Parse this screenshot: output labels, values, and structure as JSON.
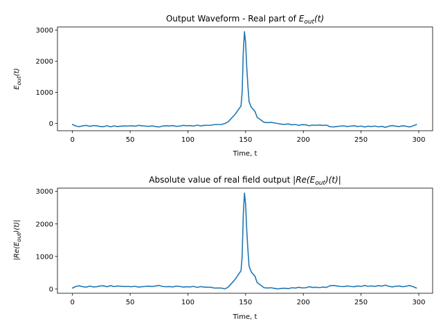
{
  "colors": {
    "line": "#1f77b4",
    "axes": "#000000",
    "background": "#ffffff"
  },
  "chart_data": [
    {
      "type": "line",
      "title": {
        "prefix": "Output Waveform - Real part of ",
        "math_main": "E",
        "math_sub": "out",
        "math_suffix": "(t)"
      },
      "xlabel": "Time, t",
      "ylabel": {
        "main": "E",
        "sub": "out",
        "suffix": "(t)"
      },
      "xlim": [
        -13,
        312
      ],
      "ylim": [
        -230,
        3100
      ],
      "xticks": [
        0,
        50,
        100,
        150,
        200,
        250,
        300
      ],
      "xtick_labels": [
        "0",
        "50",
        "100",
        "150",
        "200",
        "250",
        "300"
      ],
      "yticks": [
        0,
        1000,
        2000,
        3000
      ],
      "ytick_labels": [
        "0",
        "1000",
        "2000",
        "3000"
      ],
      "grid": false,
      "series": [
        {
          "values": [
            [
              0,
              -30
            ],
            [
              3,
              -80
            ],
            [
              6,
              -100
            ],
            [
              9,
              -70
            ],
            [
              12,
              -60
            ],
            [
              15,
              -90
            ],
            [
              18,
              -65
            ],
            [
              21,
              -70
            ],
            [
              24,
              -95
            ],
            [
              27,
              -100
            ],
            [
              30,
              -70
            ],
            [
              33,
              -105
            ],
            [
              36,
              -75
            ],
            [
              39,
              -95
            ],
            [
              42,
              -85
            ],
            [
              45,
              -75
            ],
            [
              48,
              -80
            ],
            [
              51,
              -70
            ],
            [
              54,
              -85
            ],
            [
              57,
              -60
            ],
            [
              60,
              -70
            ],
            [
              63,
              -80
            ],
            [
              66,
              -90
            ],
            [
              69,
              -75
            ],
            [
              72,
              -95
            ],
            [
              75,
              -110
            ],
            [
              78,
              -80
            ],
            [
              81,
              -70
            ],
            [
              84,
              -75
            ],
            [
              87,
              -65
            ],
            [
              90,
              -90
            ],
            [
              93,
              -80
            ],
            [
              96,
              -60
            ],
            [
              99,
              -70
            ],
            [
              102,
              -65
            ],
            [
              105,
              -80
            ],
            [
              108,
              -50
            ],
            [
              111,
              -75
            ],
            [
              114,
              -60
            ],
            [
              117,
              -55
            ],
            [
              120,
              -55
            ],
            [
              123,
              -30
            ],
            [
              126,
              -30
            ],
            [
              129,
              -30
            ],
            [
              132,
              0
            ],
            [
              135,
              60
            ],
            [
              138,
              180
            ],
            [
              141,
              300
            ],
            [
              144,
              460
            ],
            [
              146,
              560
            ],
            [
              147,
              1000
            ],
            [
              148,
              2300
            ],
            [
              149,
              2950
            ],
            [
              150,
              2600
            ],
            [
              151,
              1800
            ],
            [
              152,
              1200
            ],
            [
              153,
              700
            ],
            [
              155,
              520
            ],
            [
              158,
              400
            ],
            [
              160,
              200
            ],
            [
              163,
              120
            ],
            [
              166,
              40
            ],
            [
              169,
              30
            ],
            [
              172,
              40
            ],
            [
              175,
              20
            ],
            [
              178,
              0
            ],
            [
              181,
              -20
            ],
            [
              184,
              -25
            ],
            [
              187,
              -10
            ],
            [
              190,
              -40
            ],
            [
              193,
              -30
            ],
            [
              196,
              -55
            ],
            [
              199,
              -35
            ],
            [
              202,
              -40
            ],
            [
              205,
              -70
            ],
            [
              208,
              -50
            ],
            [
              211,
              -55
            ],
            [
              214,
              -45
            ],
            [
              217,
              -60
            ],
            [
              220,
              -50
            ],
            [
              223,
              -100
            ],
            [
              226,
              -110
            ],
            [
              229,
              -95
            ],
            [
              232,
              -80
            ],
            [
              235,
              -75
            ],
            [
              238,
              -95
            ],
            [
              241,
              -80
            ],
            [
              244,
              -70
            ],
            [
              247,
              -95
            ],
            [
              250,
              -80
            ],
            [
              253,
              -110
            ],
            [
              256,
              -85
            ],
            [
              259,
              -95
            ],
            [
              262,
              -80
            ],
            [
              265,
              -105
            ],
            [
              268,
              -90
            ],
            [
              271,
              -120
            ],
            [
              274,
              -85
            ],
            [
              277,
              -65
            ],
            [
              280,
              -85
            ],
            [
              283,
              -95
            ],
            [
              286,
              -70
            ],
            [
              289,
              -85
            ],
            [
              292,
              -110
            ],
            [
              295,
              -75
            ],
            [
              298,
              -30
            ]
          ]
        }
      ]
    },
    {
      "type": "line",
      "title": {
        "prefix": "Absolute value of real field output ",
        "math_main": "|Re(E",
        "math_sub": "out",
        "math_suffix": ")(t)|"
      },
      "xlabel": "Time, t",
      "ylabel": {
        "main": "|Re(E",
        "sub": "out",
        "suffix": ")(t)|"
      },
      "xlim": [
        -13,
        312
      ],
      "ylim": [
        -130,
        3100
      ],
      "xticks": [
        0,
        50,
        100,
        150,
        200,
        250,
        300
      ],
      "xtick_labels": [
        "0",
        "50",
        "100",
        "150",
        "200",
        "250",
        "300"
      ],
      "yticks": [
        0,
        1000,
        2000,
        3000
      ],
      "ytick_labels": [
        "0",
        "1000",
        "2000",
        "3000"
      ],
      "grid": false,
      "series": [
        {
          "values": [
            [
              0,
              30
            ],
            [
              3,
              80
            ],
            [
              6,
              100
            ],
            [
              9,
              70
            ],
            [
              12,
              60
            ],
            [
              15,
              90
            ],
            [
              18,
              65
            ],
            [
              21,
              70
            ],
            [
              24,
              95
            ],
            [
              27,
              100
            ],
            [
              30,
              70
            ],
            [
              33,
              105
            ],
            [
              36,
              75
            ],
            [
              39,
              95
            ],
            [
              42,
              85
            ],
            [
              45,
              75
            ],
            [
              48,
              80
            ],
            [
              51,
              70
            ],
            [
              54,
              85
            ],
            [
              57,
              60
            ],
            [
              60,
              70
            ],
            [
              63,
              80
            ],
            [
              66,
              90
            ],
            [
              69,
              75
            ],
            [
              72,
              95
            ],
            [
              75,
              110
            ],
            [
              78,
              80
            ],
            [
              81,
              70
            ],
            [
              84,
              75
            ],
            [
              87,
              65
            ],
            [
              90,
              90
            ],
            [
              93,
              80
            ],
            [
              96,
              60
            ],
            [
              99,
              70
            ],
            [
              102,
              65
            ],
            [
              105,
              80
            ],
            [
              108,
              50
            ],
            [
              111,
              75
            ],
            [
              114,
              60
            ],
            [
              117,
              55
            ],
            [
              120,
              55
            ],
            [
              123,
              30
            ],
            [
              126,
              30
            ],
            [
              129,
              30
            ],
            [
              132,
              5
            ],
            [
              135,
              60
            ],
            [
              138,
              180
            ],
            [
              141,
              300
            ],
            [
              144,
              460
            ],
            [
              146,
              560
            ],
            [
              147,
              1000
            ],
            [
              148,
              2300
            ],
            [
              149,
              2950
            ],
            [
              150,
              2600
            ],
            [
              151,
              1800
            ],
            [
              152,
              1200
            ],
            [
              153,
              700
            ],
            [
              155,
              520
            ],
            [
              158,
              400
            ],
            [
              160,
              200
            ],
            [
              163,
              120
            ],
            [
              166,
              40
            ],
            [
              169,
              30
            ],
            [
              172,
              40
            ],
            [
              175,
              20
            ],
            [
              178,
              5
            ],
            [
              181,
              20
            ],
            [
              184,
              25
            ],
            [
              187,
              10
            ],
            [
              190,
              40
            ],
            [
              193,
              30
            ],
            [
              196,
              55
            ],
            [
              199,
              35
            ],
            [
              202,
              40
            ],
            [
              205,
              70
            ],
            [
              208,
              50
            ],
            [
              211,
              55
            ],
            [
              214,
              45
            ],
            [
              217,
              60
            ],
            [
              220,
              50
            ],
            [
              223,
              100
            ],
            [
              226,
              110
            ],
            [
              229,
              95
            ],
            [
              232,
              80
            ],
            [
              235,
              75
            ],
            [
              238,
              95
            ],
            [
              241,
              80
            ],
            [
              244,
              70
            ],
            [
              247,
              95
            ],
            [
              250,
              80
            ],
            [
              253,
              110
            ],
            [
              256,
              85
            ],
            [
              259,
              95
            ],
            [
              262,
              80
            ],
            [
              265,
              105
            ],
            [
              268,
              90
            ],
            [
              271,
              120
            ],
            [
              274,
              85
            ],
            [
              277,
              65
            ],
            [
              280,
              85
            ],
            [
              283,
              95
            ],
            [
              286,
              70
            ],
            [
              289,
              85
            ],
            [
              292,
              110
            ],
            [
              295,
              75
            ],
            [
              298,
              30
            ]
          ]
        }
      ]
    }
  ]
}
